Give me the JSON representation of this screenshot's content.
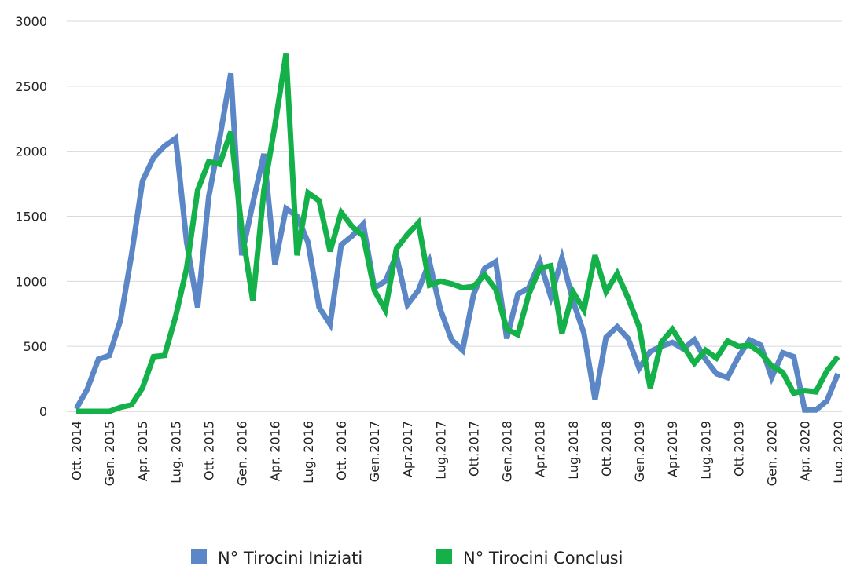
{
  "chart_data": {
    "type": "line",
    "categories": [
      "Ott. 2014",
      null,
      null,
      "Gen. 2015",
      null,
      null,
      "Apr. 2015",
      null,
      null,
      "Lug. 2015",
      null,
      null,
      "Ott. 2015",
      null,
      null,
      "Gen. 2016",
      null,
      null,
      "Apr. 2016",
      null,
      null,
      "Lug. 2016",
      null,
      null,
      "Ott. 2016",
      null,
      null,
      "Gen.2017",
      null,
      null,
      "Apr.2017",
      null,
      null,
      "Lug.2017",
      null,
      null,
      "Ott.2017",
      null,
      null,
      "Gen.2018",
      null,
      null,
      "Apr.2018",
      null,
      null,
      "Lug.2018",
      null,
      null,
      "Ott.2018",
      null,
      null,
      "Gen.2019",
      null,
      null,
      "Apr.2019",
      null,
      null,
      "Lug.2019",
      null,
      null,
      "Ott.2019",
      null,
      null,
      "Gen. 2020",
      null,
      null,
      "Apr. 2020",
      null,
      null,
      "Lug. 2020"
    ],
    "series": [
      {
        "name": "N° Tirocini Iniziati",
        "color": "#5b87c6",
        "values": [
          20,
          170,
          400,
          430,
          700,
          1200,
          1770,
          1950,
          2040,
          2100,
          1300,
          800,
          1650,
          2100,
          2600,
          1200,
          1600,
          1980,
          1130,
          1560,
          1500,
          1300,
          800,
          670,
          1280,
          1350,
          1440,
          950,
          1000,
          1200,
          820,
          930,
          1150,
          780,
          550,
          470,
          900,
          1100,
          1150,
          560,
          900,
          950,
          1150,
          880,
          1180,
          850,
          600,
          90,
          570,
          650,
          560,
          330,
          460,
          500,
          530,
          480,
          550,
          400,
          290,
          260,
          420,
          550,
          510,
          260,
          450,
          420,
          10,
          10,
          80,
          290
        ]
      },
      {
        "name": "N° Tirocini Conclusi",
        "color": "#14b04a",
        "values": [
          0,
          0,
          0,
          0,
          30,
          50,
          180,
          420,
          430,
          730,
          1100,
          1700,
          1920,
          1900,
          2150,
          1400,
          850,
          1700,
          2200,
          2750,
          1200,
          1680,
          1620,
          1230,
          1530,
          1420,
          1350,
          930,
          780,
          1250,
          1360,
          1450,
          970,
          1000,
          980,
          950,
          960,
          1050,
          940,
          630,
          590,
          900,
          1100,
          1120,
          600,
          920,
          780,
          1200,
          920,
          1060,
          870,
          650,
          180,
          530,
          630,
          500,
          370,
          470,
          410,
          540,
          500,
          510,
          450,
          350,
          300,
          140,
          160,
          150,
          310,
          420
        ]
      }
    ],
    "ylim": [
      0,
      3000
    ],
    "yticks": [
      0,
      500,
      1000,
      1500,
      2000,
      2500,
      3000
    ],
    "grid": true
  }
}
